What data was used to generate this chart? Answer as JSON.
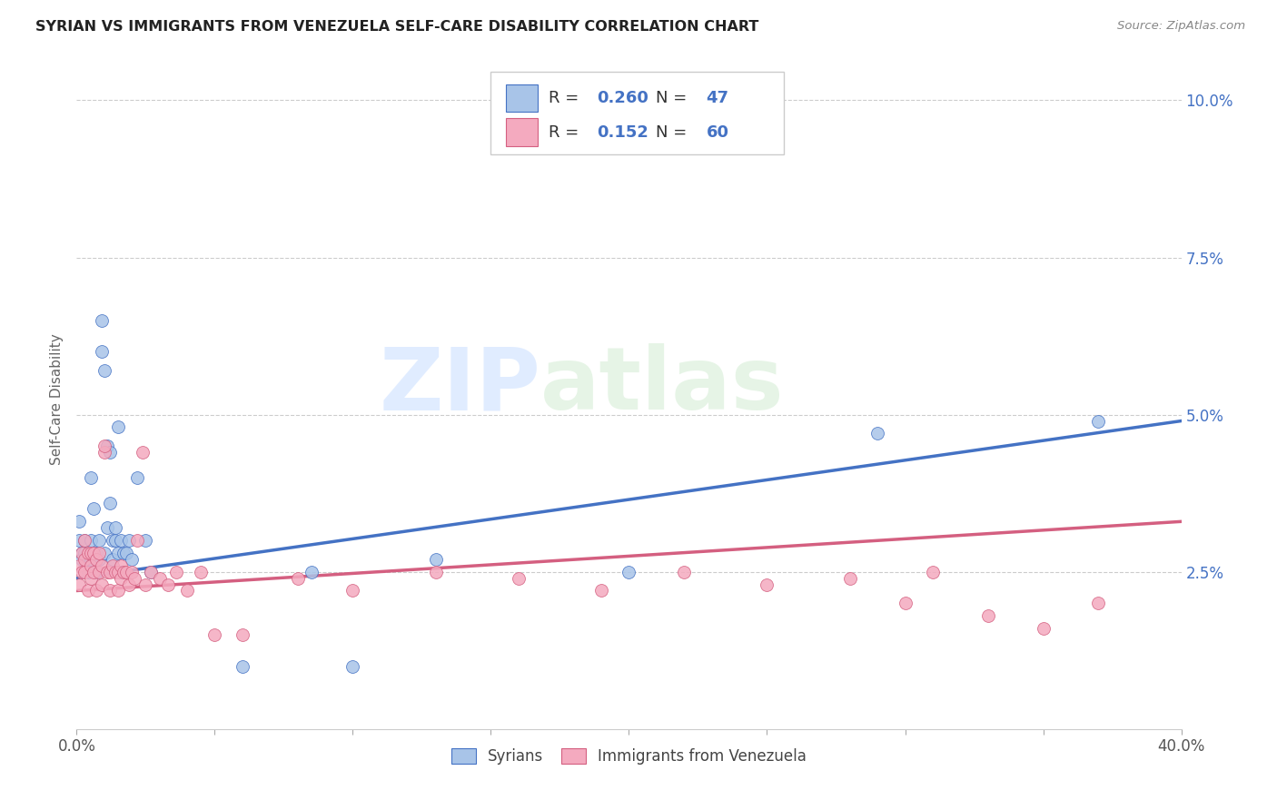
{
  "title": "SYRIAN VS IMMIGRANTS FROM VENEZUELA SELF-CARE DISABILITY CORRELATION CHART",
  "source": "Source: ZipAtlas.com",
  "ylabel": "Self-Care Disability",
  "legend_label1": "Syrians",
  "legend_label2": "Immigrants from Venezuela",
  "r1": 0.26,
  "n1": 47,
  "r2": 0.152,
  "n2": 60,
  "color_syrian": "#A8C4E8",
  "color_venezuela": "#F4AABF",
  "line_color_syrian": "#4472C4",
  "line_color_venezuela": "#D45F80",
  "watermark_zip": "ZIP",
  "watermark_atlas": "atlas",
  "xlim": [
    0.0,
    0.4
  ],
  "ylim": [
    0.0,
    0.105
  ],
  "yticks": [
    0.025,
    0.05,
    0.075,
    0.1
  ],
  "ytick_labels": [
    "2.5%",
    "5.0%",
    "7.5%",
    "10.0%"
  ],
  "trendline_syrian": [
    0.0,
    0.4,
    0.024,
    0.049
  ],
  "trendline_venezuela": [
    0.0,
    0.4,
    0.022,
    0.033
  ],
  "syrian_x": [
    0.001,
    0.001,
    0.002,
    0.002,
    0.003,
    0.003,
    0.004,
    0.004,
    0.005,
    0.005,
    0.005,
    0.006,
    0.006,
    0.007,
    0.007,
    0.008,
    0.008,
    0.009,
    0.009,
    0.01,
    0.01,
    0.011,
    0.011,
    0.012,
    0.012,
    0.013,
    0.013,
    0.014,
    0.014,
    0.015,
    0.015,
    0.016,
    0.016,
    0.017,
    0.018,
    0.019,
    0.02,
    0.022,
    0.025,
    0.027,
    0.06,
    0.085,
    0.1,
    0.13,
    0.2,
    0.29,
    0.37
  ],
  "syrian_y": [
    0.033,
    0.03,
    0.028,
    0.027,
    0.03,
    0.028,
    0.027,
    0.025,
    0.04,
    0.03,
    0.027,
    0.035,
    0.028,
    0.028,
    0.025,
    0.03,
    0.027,
    0.065,
    0.06,
    0.057,
    0.028,
    0.045,
    0.032,
    0.044,
    0.036,
    0.03,
    0.027,
    0.032,
    0.03,
    0.048,
    0.028,
    0.03,
    0.025,
    0.028,
    0.028,
    0.03,
    0.027,
    0.04,
    0.03,
    0.025,
    0.01,
    0.025,
    0.01,
    0.027,
    0.025,
    0.047,
    0.049
  ],
  "venezuela_x": [
    0.001,
    0.001,
    0.002,
    0.002,
    0.003,
    0.003,
    0.003,
    0.004,
    0.004,
    0.005,
    0.005,
    0.005,
    0.006,
    0.006,
    0.007,
    0.007,
    0.008,
    0.008,
    0.009,
    0.009,
    0.01,
    0.01,
    0.011,
    0.012,
    0.012,
    0.013,
    0.014,
    0.015,
    0.015,
    0.016,
    0.016,
    0.017,
    0.018,
    0.019,
    0.02,
    0.021,
    0.022,
    0.024,
    0.025,
    0.027,
    0.03,
    0.033,
    0.036,
    0.04,
    0.045,
    0.05,
    0.06,
    0.08,
    0.1,
    0.13,
    0.16,
    0.19,
    0.22,
    0.25,
    0.28,
    0.3,
    0.31,
    0.33,
    0.35,
    0.37
  ],
  "venezuela_y": [
    0.026,
    0.023,
    0.025,
    0.028,
    0.027,
    0.025,
    0.03,
    0.022,
    0.028,
    0.024,
    0.026,
    0.028,
    0.025,
    0.028,
    0.022,
    0.027,
    0.025,
    0.028,
    0.023,
    0.026,
    0.044,
    0.045,
    0.025,
    0.022,
    0.025,
    0.026,
    0.025,
    0.022,
    0.025,
    0.024,
    0.026,
    0.025,
    0.025,
    0.023,
    0.025,
    0.024,
    0.03,
    0.044,
    0.023,
    0.025,
    0.024,
    0.023,
    0.025,
    0.022,
    0.025,
    0.015,
    0.015,
    0.024,
    0.022,
    0.025,
    0.024,
    0.022,
    0.025,
    0.023,
    0.024,
    0.02,
    0.025,
    0.018,
    0.016,
    0.02
  ]
}
